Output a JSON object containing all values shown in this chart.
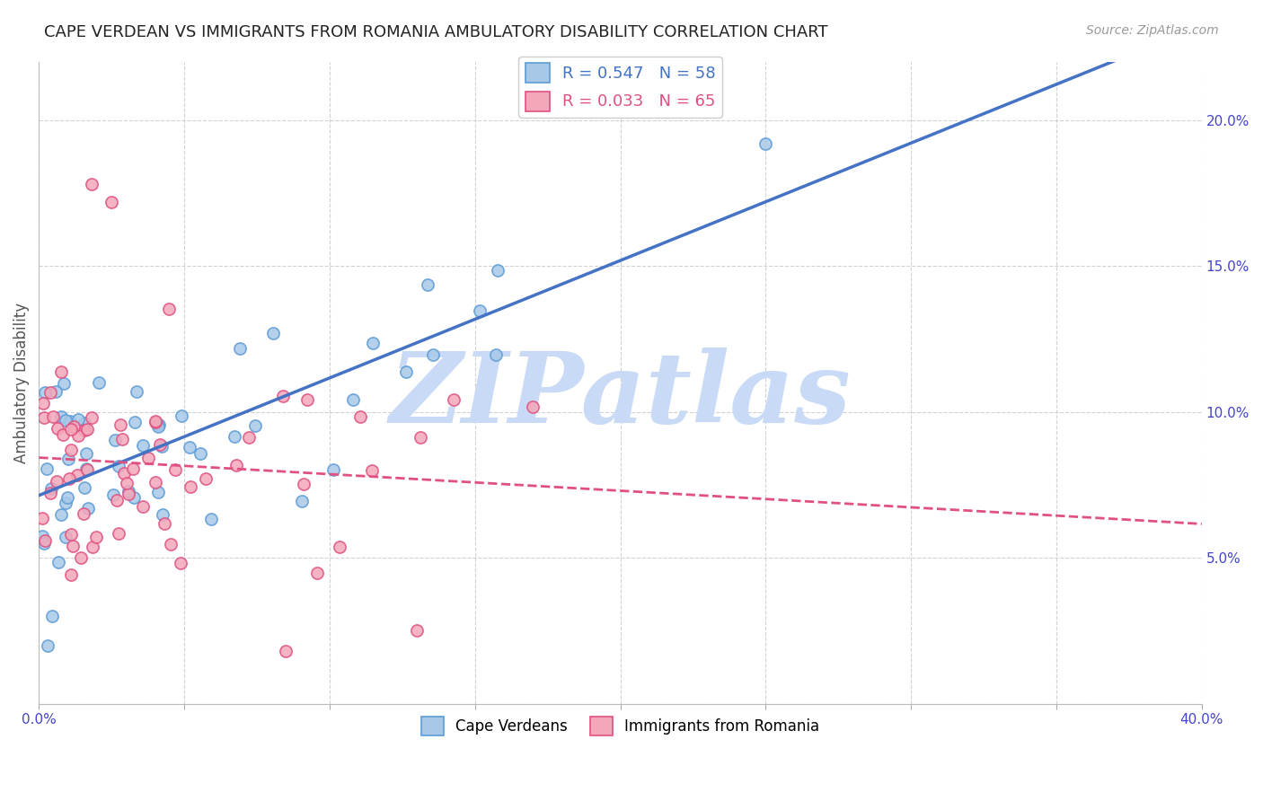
{
  "title": "CAPE VERDEAN VS IMMIGRANTS FROM ROMANIA AMBULATORY DISABILITY CORRELATION CHART",
  "source": "Source: ZipAtlas.com",
  "ylabel": "Ambulatory Disability",
  "xlim": [
    0,
    0.4
  ],
  "ylim": [
    0,
    0.22
  ],
  "yticks": [
    0.0,
    0.05,
    0.1,
    0.15,
    0.2
  ],
  "ytick_labels": [
    "",
    "5.0%",
    "10.0%",
    "15.0%",
    "20.0%"
  ],
  "xticks": [
    0.0,
    0.05,
    0.1,
    0.15,
    0.2,
    0.25,
    0.3,
    0.35,
    0.4
  ],
  "xtick_labels": [
    "0.0%",
    "",
    "",
    "",
    "",
    "",
    "",
    "",
    "40.0%"
  ],
  "legend_r1": "R = 0.547   N = 58",
  "legend_r2": "R = 0.033   N = 65",
  "legend_label1": "Cape Verdeans",
  "legend_label2": "Immigrants from Romania",
  "blue_fill": "#a8c8e8",
  "blue_edge": "#5b9bd5",
  "pink_fill": "#f4a7b9",
  "pink_edge": "#e05080",
  "blue_line": "#4472c4",
  "pink_line": "#e05080",
  "watermark": "ZIPatlas",
  "watermark_color": "#c8daf5",
  "background_color": "#ffffff",
  "grid_color": "#cccccc",
  "title_fontsize": 13,
  "axis_tick_color": "#4444cc",
  "legend_r1_color": "#4472c4",
  "legend_r2_color": "#e05080"
}
